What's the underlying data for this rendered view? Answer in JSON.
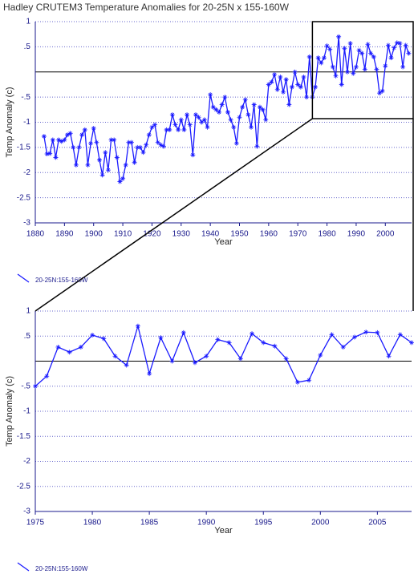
{
  "chart_data": [
    {
      "type": "line",
      "title": "Hadley CRUTEM3 Temperature Anomalies for 20-25N x 155-160W",
      "xlabel": "Year",
      "ylabel": "Temp Anomaly (c)",
      "x": [
        1883,
        1884,
        1885,
        1886,
        1887,
        1888,
        1889,
        1890,
        1891,
        1892,
        1893,
        1894,
        1895,
        1896,
        1897,
        1898,
        1899,
        1900,
        1901,
        1902,
        1903,
        1904,
        1905,
        1906,
        1907,
        1908,
        1909,
        1910,
        1911,
        1912,
        1913,
        1914,
        1915,
        1916,
        1917,
        1918,
        1919,
        1920,
        1921,
        1922,
        1923,
        1924,
        1925,
        1926,
        1927,
        1928,
        1929,
        1930,
        1931,
        1932,
        1933,
        1934,
        1935,
        1936,
        1937,
        1938,
        1939,
        1940,
        1941,
        1942,
        1943,
        1944,
        1945,
        1946,
        1947,
        1948,
        1949,
        1950,
        1951,
        1952,
        1953,
        1954,
        1955,
        1956,
        1957,
        1958,
        1959,
        1960,
        1961,
        1962,
        1963,
        1964,
        1965,
        1966,
        1967,
        1968,
        1969,
        1970,
        1971,
        1972,
        1973,
        1974,
        1975,
        1976,
        1977,
        1978,
        1979,
        1980,
        1981,
        1982,
        1983,
        1984,
        1985,
        1986,
        1987,
        1988,
        1989,
        1990,
        1991,
        1992,
        1993,
        1994,
        1995,
        1996,
        1997,
        1998,
        1999,
        2000,
        2001,
        2002,
        2003,
        2004,
        2005,
        2006,
        2007,
        2008
      ],
      "series": [
        {
          "name": "20-25N:155-160W",
          "color": "#1a1aff",
          "values": [
            -1.28,
            -1.63,
            -1.62,
            -1.35,
            -1.7,
            -1.35,
            -1.38,
            -1.35,
            -1.25,
            -1.22,
            -1.5,
            -1.85,
            -1.5,
            -1.25,
            -1.15,
            -1.85,
            -1.42,
            -1.12,
            -1.4,
            -1.75,
            -2.05,
            -1.6,
            -1.95,
            -1.35,
            -1.35,
            -1.7,
            -2.18,
            -2.12,
            -1.85,
            -1.4,
            -1.4,
            -1.8,
            -1.5,
            -1.5,
            -1.6,
            -1.45,
            -1.25,
            -1.1,
            -1.05,
            -1.4,
            -1.45,
            -1.48,
            -1.15,
            -1.15,
            -0.85,
            -1.05,
            -1.15,
            -0.95,
            -1.15,
            -0.85,
            -1.05,
            -1.65,
            -0.85,
            -0.9,
            -1.0,
            -0.95,
            -1.1,
            -0.45,
            -0.7,
            -0.75,
            -0.8,
            -0.65,
            -0.5,
            -0.8,
            -0.95,
            -1.1,
            -1.42,
            -0.9,
            -0.7,
            -0.55,
            -0.85,
            -1.1,
            -0.65,
            -1.48,
            -0.7,
            -0.75,
            -0.95,
            -0.25,
            -0.2,
            -0.05,
            -0.35,
            -0.1,
            -0.4,
            -0.15,
            -0.65,
            -0.3,
            0.0,
            -0.25,
            -0.3,
            -0.1,
            -0.5,
            0.3,
            -0.5,
            -0.3,
            0.28,
            0.18,
            0.28,
            0.52,
            0.45,
            0.1,
            -0.08,
            0.7,
            -0.25,
            0.47,
            0.0,
            0.57,
            -0.03,
            0.1,
            0.43,
            0.37,
            0.05,
            0.55,
            0.37,
            0.3,
            0.05,
            -0.42,
            -0.38,
            0.12,
            0.53,
            0.28,
            0.48,
            0.58,
            0.57,
            0.1,
            0.53,
            0.37
          ]
        }
      ],
      "xlim": [
        1880,
        2009
      ],
      "xticks": [
        1880,
        1890,
        1900,
        1910,
        1920,
        1930,
        1940,
        1950,
        1960,
        1970,
        1980,
        1990,
        2000
      ],
      "ylim": [
        -3,
        1
      ],
      "yticks": [
        1,
        {
          "value": 0.5,
          "label": ".5"
        },
        {
          "value": -0.5,
          "label": "-.5"
        },
        -1,
        {
          "value": -1.5,
          "label": "-1.5"
        },
        -2,
        {
          "value": -2.5,
          "label": "-2.5"
        },
        -3
      ]
    },
    {
      "type": "line",
      "xlabel": "Year",
      "ylabel": "Temp Anomaly (c)",
      "x": [
        1975,
        1976,
        1977,
        1978,
        1979,
        1980,
        1981,
        1982,
        1983,
        1984,
        1985,
        1986,
        1987,
        1988,
        1989,
        1990,
        1991,
        1992,
        1993,
        1994,
        1995,
        1996,
        1997,
        1998,
        1999,
        2000,
        2001,
        2002,
        2003,
        2004,
        2005,
        2006,
        2007,
        2008
      ],
      "series": [
        {
          "name": "20-25N:155-160W",
          "color": "#1a1aff",
          "values": [
            -0.5,
            -0.3,
            0.28,
            0.18,
            0.28,
            0.52,
            0.45,
            0.1,
            -0.08,
            0.7,
            -0.25,
            0.47,
            0.0,
            0.57,
            -0.03,
            0.1,
            0.43,
            0.37,
            0.05,
            0.55,
            0.37,
            0.3,
            0.05,
            -0.42,
            -0.38,
            0.12,
            0.53,
            0.28,
            0.48,
            0.58,
            0.57,
            0.1,
            0.53,
            0.37
          ]
        }
      ],
      "xlim": [
        1975,
        2008
      ],
      "xticks": [
        1975,
        1980,
        1985,
        1990,
        1995,
        2000,
        2005
      ],
      "ylim": [
        -3,
        1
      ],
      "yticks": [
        1,
        {
          "value": 0.5,
          "label": ".5"
        },
        {
          "value": -0.5,
          "label": "-.5"
        },
        -1,
        {
          "value": -1.5,
          "label": "-1.5"
        },
        -2,
        {
          "value": -2.5,
          "label": "-2.5"
        },
        -3
      ]
    }
  ]
}
